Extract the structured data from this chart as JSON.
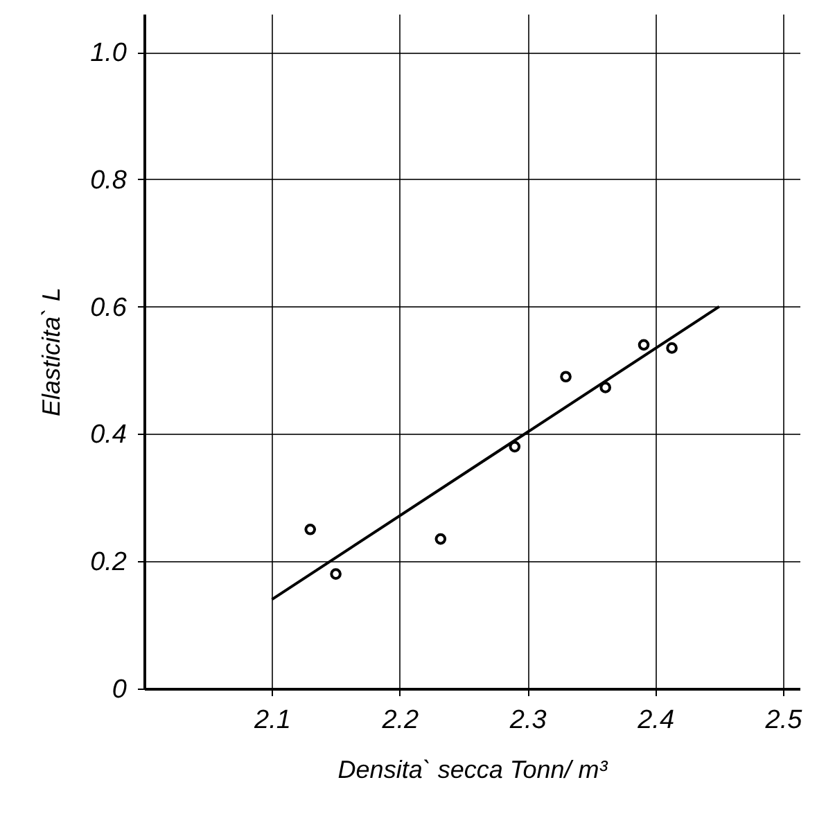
{
  "chart_data": {
    "type": "scatter",
    "xlabel": "Densita`  secca  Tonn/ m³",
    "ylabel": "Elasticita` L",
    "xlim": [
      2.0,
      2.513
    ],
    "ylim": [
      0,
      1.06
    ],
    "xticks": [
      2.1,
      2.2,
      2.3,
      2.4,
      2.5
    ],
    "yticks": [
      0,
      0.2,
      0.4,
      0.6,
      0.8,
      {
        "value": 1,
        "label": "1.0"
      }
    ],
    "grid": true,
    "series": [
      {
        "color": "#000000",
        "marker": "circle",
        "x": [
          2.13,
          2.15,
          2.232,
          2.29,
          2.33,
          2.361,
          2.391,
          2.413
        ],
        "values": [
          0.25,
          0.18,
          0.235,
          0.38,
          0.49,
          0.473,
          0.54,
          0.535
        ]
      },
      {
        "type": "line",
        "color": "#000000",
        "line_style": "solid",
        "marker": "none",
        "x": [
          2.1,
          2.45
        ],
        "values": [
          0.14,
          0.6
        ]
      }
    ]
  }
}
